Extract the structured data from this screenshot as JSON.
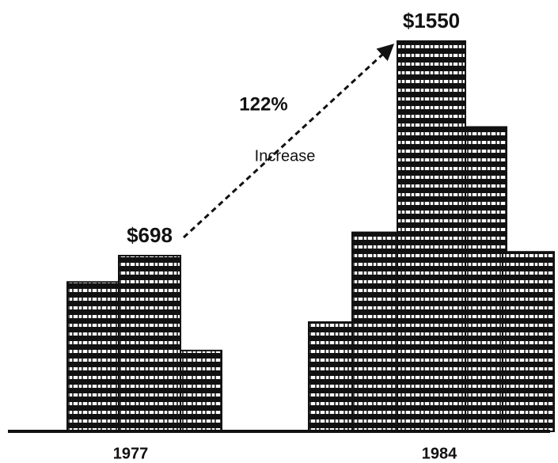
{
  "chart_data": {
    "type": "bar",
    "categories": [
      "1977",
      "1984"
    ],
    "values": [
      698,
      1550
    ],
    "value_labels": [
      "$698",
      "$1550"
    ],
    "annotations": [
      "122%",
      "Increase"
    ],
    "color": "#111111"
  }
}
